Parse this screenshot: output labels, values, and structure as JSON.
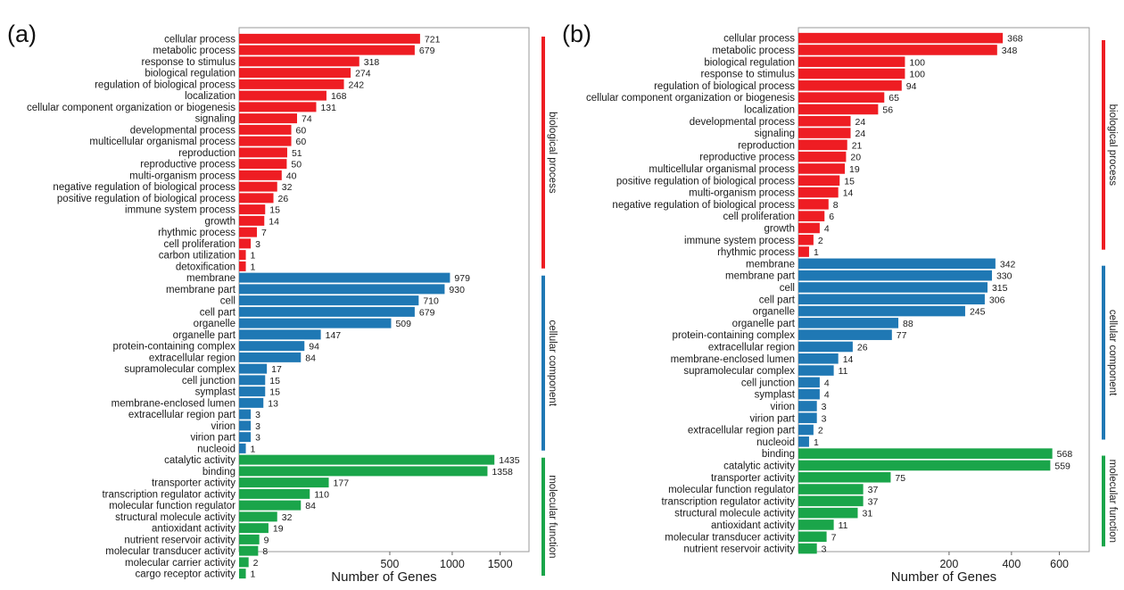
{
  "colors": {
    "biological process": "#ee1d23",
    "cellular component": "#1f78b4",
    "molecular function": "#1aa54a"
  },
  "chart_data": [
    {
      "type": "bar",
      "orientation": "horizontal",
      "panel_label": "(a)",
      "xlabel": "Number of Genes",
      "x_scale": "sqrt",
      "xlim": [
        0,
        1850
      ],
      "xticks": [
        500,
        1000,
        1500
      ],
      "groups_legend": [
        "biological process",
        "cellular component",
        "molecular function"
      ],
      "series": [
        {
          "name": "biological process",
          "categories": [
            "cellular process",
            "metabolic process",
            "response to stimulus",
            "biological regulation",
            "regulation of biological process",
            "localization",
            "cellular component organization or biogenesis",
            "signaling",
            "developmental process",
            "multicellular organismal process",
            "reproduction",
            "reproductive process",
            "multi-organism process",
            "negative regulation of biological process",
            "positive regulation of biological process",
            "immune system process",
            "growth",
            "rhythmic process",
            "cell proliferation",
            "carbon utilization",
            "detoxification"
          ],
          "values": [
            721,
            679,
            318,
            274,
            242,
            168,
            131,
            74,
            60,
            60,
            51,
            50,
            40,
            32,
            26,
            15,
            14,
            7,
            3,
            1,
            1
          ]
        },
        {
          "name": "cellular component",
          "categories": [
            "membrane",
            "membrane part",
            "cell",
            "cell part",
            "organelle",
            "organelle part",
            "protein-containing complex",
            "extracellular region",
            "supramolecular complex",
            "cell junction",
            "symplast",
            "membrane-enclosed lumen",
            "extracellular region part",
            "virion",
            "virion part",
            "nucleoid"
          ],
          "values": [
            979,
            930,
            710,
            679,
            509,
            147,
            94,
            84,
            17,
            15,
            15,
            13,
            3,
            3,
            3,
            1
          ]
        },
        {
          "name": "molecular function",
          "categories": [
            "catalytic activity",
            "binding",
            "transporter activity",
            "transcription regulator activity",
            "molecular function regulator",
            "structural molecule activity",
            "antioxidant activity",
            "nutrient reservoir activity",
            "molecular transducer activity",
            "molecular carrier activity",
            "cargo receptor activity"
          ],
          "values": [
            1435,
            1358,
            177,
            110,
            84,
            32,
            19,
            9,
            8,
            2,
            1
          ]
        }
      ]
    },
    {
      "type": "bar",
      "orientation": "horizontal",
      "panel_label": "(b)",
      "xlabel": "Number of Genes",
      "x_scale": "sqrt",
      "xlim": [
        0,
        745
      ],
      "xticks": [
        200,
        400,
        600
      ],
      "groups_legend": [
        "biological process",
        "cellular component",
        "molecular function"
      ],
      "series": [
        {
          "name": "biological process",
          "categories": [
            "cellular process",
            "metabolic process",
            "biological regulation",
            "response to stimulus",
            "regulation of biological process",
            "cellular component organization or biogenesis",
            "localization",
            "developmental process",
            "signaling",
            "reproduction",
            "reproductive process",
            "multicellular organismal process",
            "positive regulation of biological process",
            "multi-organism process",
            "negative regulation of biological process",
            "cell proliferation",
            "growth",
            "immune system process",
            "rhythmic process"
          ],
          "values": [
            368,
            348,
            100,
            100,
            94,
            65,
            56,
            24,
            24,
            21,
            20,
            19,
            15,
            14,
            8,
            6,
            4,
            2,
            1
          ]
        },
        {
          "name": "cellular component",
          "categories": [
            "membrane",
            "membrane part",
            "cell",
            "cell part",
            "organelle",
            "organelle part",
            "protein-containing complex",
            "extracellular region",
            "membrane-enclosed lumen",
            "supramolecular complex",
            "cell junction",
            "symplast",
            "virion",
            "virion part",
            "extracellular region part",
            "nucleoid"
          ],
          "values": [
            342,
            330,
            315,
            306,
            245,
            88,
            77,
            26,
            14,
            11,
            4,
            4,
            3,
            3,
            2,
            1
          ]
        },
        {
          "name": "molecular function",
          "categories": [
            "binding",
            "catalytic activity",
            "transporter activity",
            "molecular function regulator",
            "transcription regulator activity",
            "structural molecule activity",
            "antioxidant activity",
            "molecular transducer activity",
            "nutrient reservoir activity"
          ],
          "values": [
            568,
            559,
            75,
            37,
            37,
            31,
            11,
            7,
            3
          ]
        }
      ]
    }
  ]
}
